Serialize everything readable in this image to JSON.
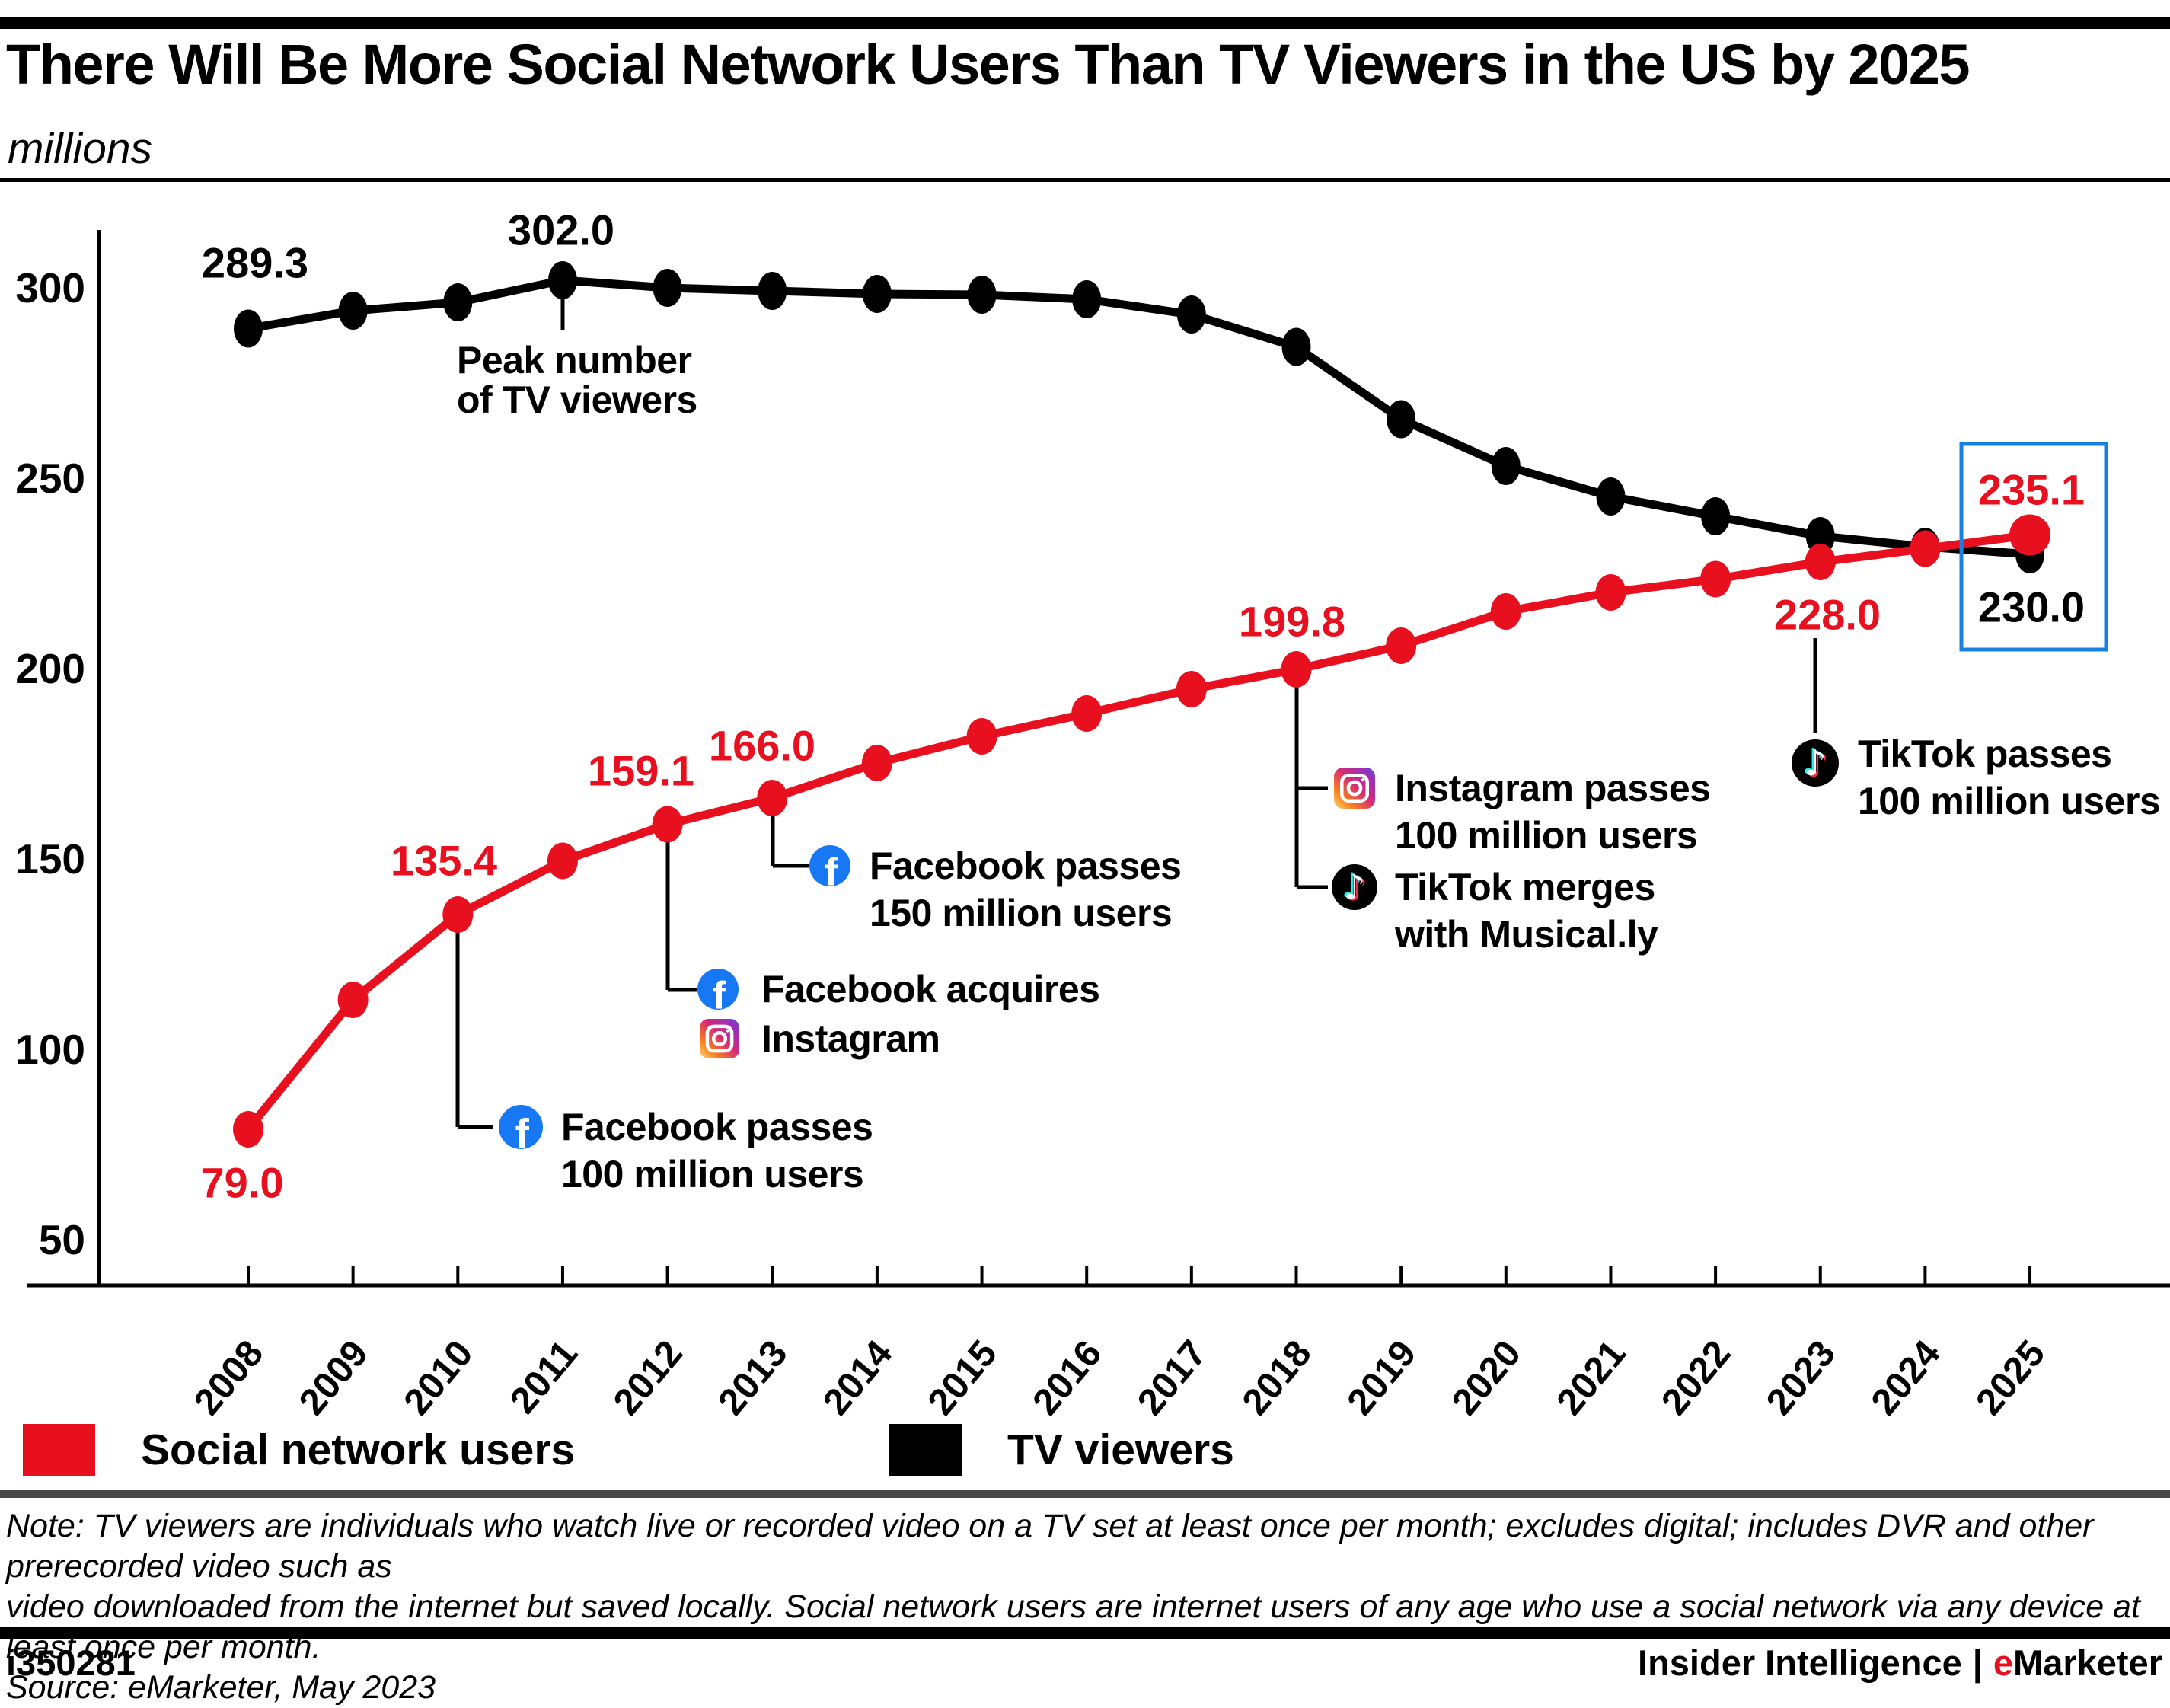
{
  "header": {
    "title": "There Will Be More Social Network Users Than TV Viewers in the US by 2025",
    "subtitle": "millions"
  },
  "chart_data": {
    "type": "line",
    "title": "There Will Be More Social Network Users Than TV Viewers in the US by 2025",
    "units_label": "millions",
    "x": [
      2008,
      2009,
      2010,
      2011,
      2012,
      2013,
      2014,
      2015,
      2016,
      2017,
      2018,
      2019,
      2020,
      2021,
      2022,
      2023,
      2024,
      2025
    ],
    "series": [
      {
        "name": "Social network users",
        "color": "#e8101e",
        "values": [
          79.0,
          113.0,
          135.4,
          149.5,
          159.1,
          166.0,
          175.2,
          182.2,
          188.2,
          194.6,
          199.8,
          206.0,
          215.0,
          220.0,
          223.5,
          228.0,
          231.5,
          235.1
        ]
      },
      {
        "name": "TV viewers",
        "color": "#000000",
        "values": [
          289.3,
          294.0,
          296.2,
          302.0,
          300.0,
          299.2,
          298.4,
          298.2,
          297.0,
          293.0,
          284.5,
          265.5,
          253.2,
          245.2,
          240.0,
          234.8,
          232.0,
          230.0
        ]
      }
    ],
    "ylim": [
      30,
      312
    ],
    "yticks": [
      50,
      100,
      150,
      200,
      250,
      300
    ],
    "grid": false,
    "legend_position": "bottom-left",
    "point_labels": [
      {
        "series": "Social network users",
        "year": 2008,
        "label": "79.0"
      },
      {
        "series": "Social network users",
        "year": 2010,
        "label": "135.4"
      },
      {
        "series": "Social network users",
        "year": 2012,
        "label": "159.1"
      },
      {
        "series": "Social network users",
        "year": 2013,
        "label": "166.0"
      },
      {
        "series": "Social network users",
        "year": 2018,
        "label": "199.8"
      },
      {
        "series": "Social network users",
        "year": 2023,
        "label": "228.0"
      },
      {
        "series": "Social network users",
        "year": 2025,
        "label": "235.1"
      },
      {
        "series": "TV viewers",
        "year": 2008,
        "label": "289.3"
      },
      {
        "series": "TV viewers",
        "year": 2011,
        "label": "302.0"
      },
      {
        "series": "TV viewers",
        "year": 2025,
        "label": "230.0"
      }
    ],
    "annotations": [
      {
        "id": "peak-tv",
        "year": 2011,
        "series": "TV viewers",
        "icons": [],
        "lines": [
          "Peak number",
          "of TV viewers"
        ]
      },
      {
        "id": "fb-100m",
        "year": 2010,
        "series": "Social network users",
        "icons": [
          "facebook"
        ],
        "lines": [
          "Facebook passes",
          "100 million users"
        ]
      },
      {
        "id": "fb-acquires-insta",
        "year": 2012,
        "series": "Social network users",
        "icons": [
          "facebook",
          "instagram"
        ],
        "lines": [
          "Facebook acquires",
          "Instagram"
        ]
      },
      {
        "id": "fb-150m",
        "year": 2013,
        "series": "Social network users",
        "icons": [
          "facebook"
        ],
        "lines": [
          "Facebook passes",
          "150 million users"
        ]
      },
      {
        "id": "insta-100m",
        "year": 2018,
        "series": "Social network users",
        "icons": [
          "instagram"
        ],
        "lines": [
          "Instagram passes",
          "100 million users"
        ]
      },
      {
        "id": "tiktok-musically",
        "year": 2018,
        "series": "Social network users",
        "icons": [
          "tiktok"
        ],
        "lines": [
          "TikTok merges",
          "with Musical.ly"
        ]
      },
      {
        "id": "tiktok-100m",
        "year": 2023,
        "series": "Social network users",
        "icons": [
          "tiktok"
        ],
        "lines": [
          "TikTok passes",
          "100 million users"
        ]
      }
    ],
    "highlight_box": {
      "year": 2025,
      "color": "#1780e4"
    }
  },
  "legend": {
    "items": [
      {
        "label": "Social network users",
        "color": "#e8101e"
      },
      {
        "label": "TV viewers",
        "color": "#000000"
      }
    ]
  },
  "notes": {
    "line1": "Note: TV viewers are individuals who watch live or recorded video on a TV set at least once per month; excludes digital; includes DVR and other prerecorded video such as",
    "line2": "video downloaded from the internet but saved locally. Social network users are internet users of any age who use a social network via any device at least once per month.",
    "source": "Source: eMarketer, May 2023"
  },
  "footer": {
    "chart_id": "i350281",
    "brand1": "Insider Intelligence",
    "separator": "|",
    "brand2_accent": "e",
    "brand2_rest": "Marketer",
    "accent_color": "#e8101e"
  }
}
